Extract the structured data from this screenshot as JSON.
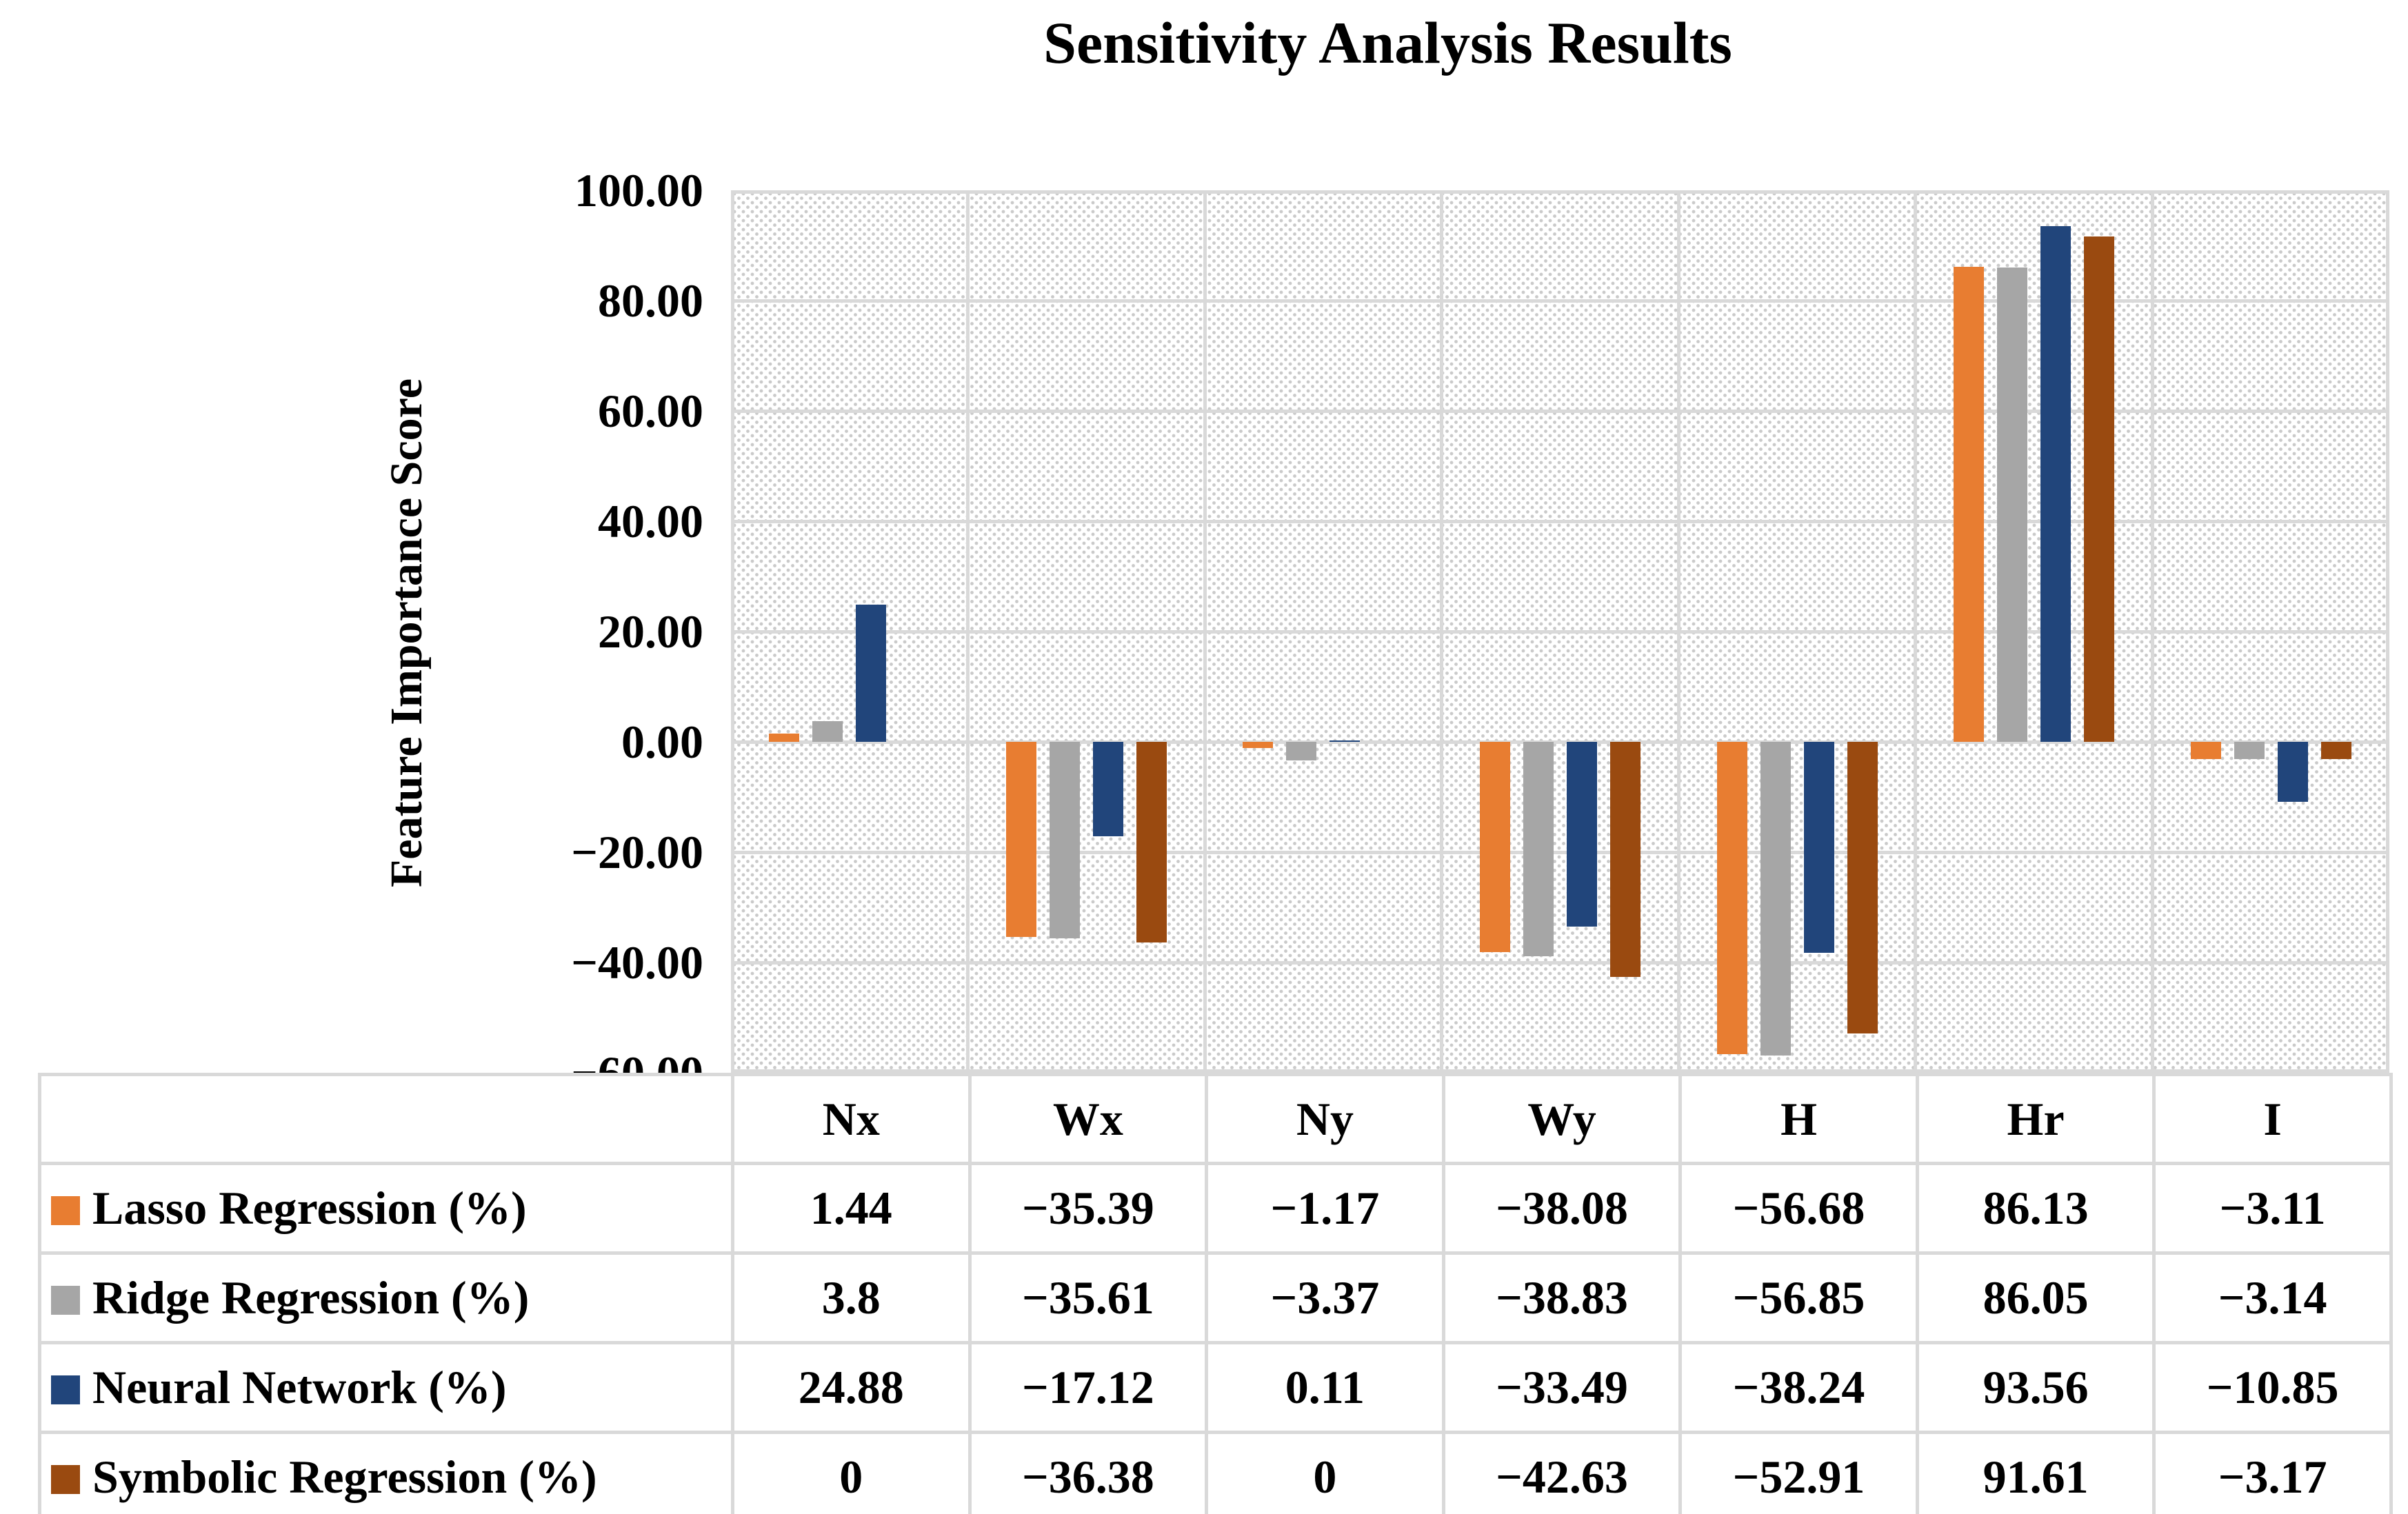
{
  "title": "Sensitivity Analysis Results",
  "y_axis": {
    "title": "Feature Importance Score",
    "tick_labels": [
      "100.00",
      "80.00",
      "60.00",
      "40.00",
      "20.00",
      "0.00",
      "−20.00",
      "−40.00",
      "−60.00"
    ]
  },
  "colors": {
    "gridline": "#D9D9D9",
    "hatch_dot": "#CACACA",
    "table_border": "#D9D9D9"
  },
  "chart_data": {
    "type": "bar",
    "title": "Sensitivity Analysis Results",
    "xlabel": "",
    "ylabel": "Feature Importance Score",
    "ylim": [
      -60,
      100
    ],
    "y_tick_step": 20,
    "grid": true,
    "plot_background": "diagonal-dot-hatch",
    "legend_position": "data-table-left-column",
    "categories": [
      "Nx",
      "Wx",
      "Ny",
      "Wy",
      "H",
      "Hr",
      "I"
    ],
    "series": [
      {
        "name": "Lasso Regression (%)",
        "color": "#E87D31",
        "values": [
          1.44,
          -35.39,
          -1.17,
          -38.08,
          -56.68,
          86.13,
          -3.11
        ],
        "labels": [
          "1.44",
          "−35.39",
          "−1.17",
          "−38.08",
          "−56.68",
          "86.13",
          "−3.11"
        ]
      },
      {
        "name": "Ridge Regression (%)",
        "color": "#A6A6A6",
        "values": [
          3.8,
          -35.61,
          -3.37,
          -38.83,
          -56.85,
          86.05,
          -3.14
        ],
        "labels": [
          "3.8",
          "−35.61",
          "−3.37",
          "−38.83",
          "−56.85",
          "86.05",
          "−3.14"
        ]
      },
      {
        "name": "Neural Network (%)",
        "color": "#21457B",
        "values": [
          24.88,
          -17.12,
          0.11,
          -33.49,
          -38.24,
          93.56,
          -10.85
        ],
        "labels": [
          "24.88",
          "−17.12",
          "0.11",
          "−33.49",
          "−38.24",
          "93.56",
          "−10.85"
        ]
      },
      {
        "name": "Symbolic Regression (%)",
        "color": "#9A4A10",
        "values": [
          0,
          -36.38,
          0,
          -42.63,
          -52.91,
          91.61,
          -3.17
        ],
        "labels": [
          "0",
          "−36.38",
          "0",
          "−42.63",
          "−52.91",
          "91.61",
          "−3.17"
        ]
      }
    ]
  }
}
